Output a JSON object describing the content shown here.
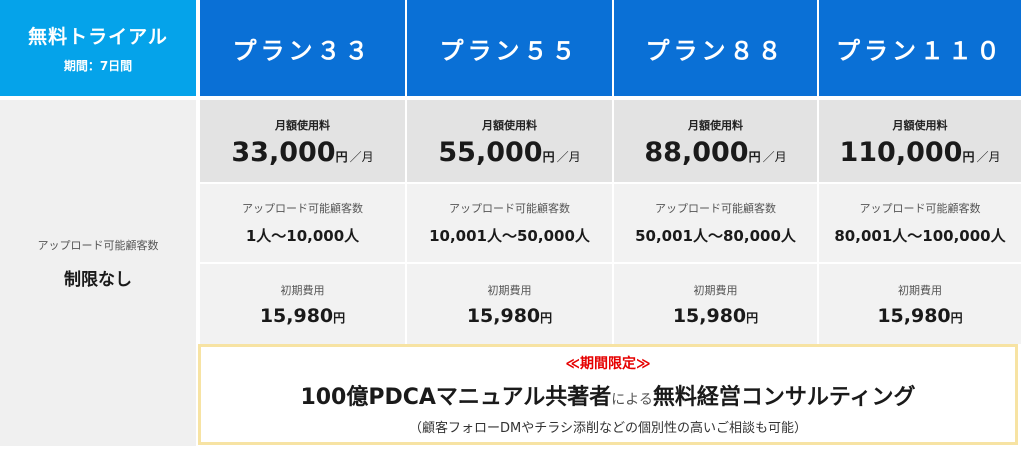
{
  "trial": {
    "title": "無料トライアル",
    "period": "期間：7日間",
    "upload_label": "アップロード可能顧客数",
    "upload_value": "制限なし"
  },
  "plans": [
    {
      "name": "プラン３３",
      "price_label": "月額使用料",
      "price": "33,000",
      "price_yen": "円",
      "price_per": "／月",
      "upload_label": "アップロード可能顧客数",
      "upload_from": "1",
      "upload_sep": "人～",
      "upload_to": "10,000",
      "upload_unit": "人",
      "fee_label": "初期費用",
      "fee": "15,980",
      "fee_yen": "円"
    },
    {
      "name": "プラン５５",
      "price_label": "月額使用料",
      "price": "55,000",
      "price_yen": "円",
      "price_per": "／月",
      "upload_label": "アップロード可能顧客数",
      "upload_from": "10,001",
      "upload_sep": "人～",
      "upload_to": "50,000",
      "upload_unit": "人",
      "fee_label": "初期費用",
      "fee": "15,980",
      "fee_yen": "円"
    },
    {
      "name": "プラン８８",
      "price_label": "月額使用料",
      "price": "88,000",
      "price_yen": "円",
      "price_per": "／月",
      "upload_label": "アップロード可能顧客数",
      "upload_from": "50,001",
      "upload_sep": "人～",
      "upload_to": "80,000",
      "upload_unit": "人",
      "fee_label": "初期費用",
      "fee": "15,980",
      "fee_yen": "円"
    },
    {
      "name": "プラン１１０",
      "price_label": "月額使用料",
      "price": "110,000",
      "price_yen": "円",
      "price_per": "／月",
      "upload_label": "アップロード可能顧客数",
      "upload_from": "80,001",
      "upload_sep": "人～",
      "upload_to": "100,000",
      "upload_unit": "人",
      "fee_label": "初期費用",
      "fee": "15,980",
      "fee_yen": "円"
    }
  ],
  "promo": {
    "tag": "≪期間限定≫",
    "main_part1": "100億PDCAマニュアル共著者",
    "main_part2": "による",
    "main_part3": "無料経営コンサルティング",
    "note": "（顧客フォローDMやチラシ添削などの個別性の高いご相談も可能）"
  },
  "colors": {
    "trial_header": "#05a3ea",
    "plan_header": "#0a70d6",
    "promo_border": "#f7e3a3",
    "promo_tag": "#e60000"
  }
}
